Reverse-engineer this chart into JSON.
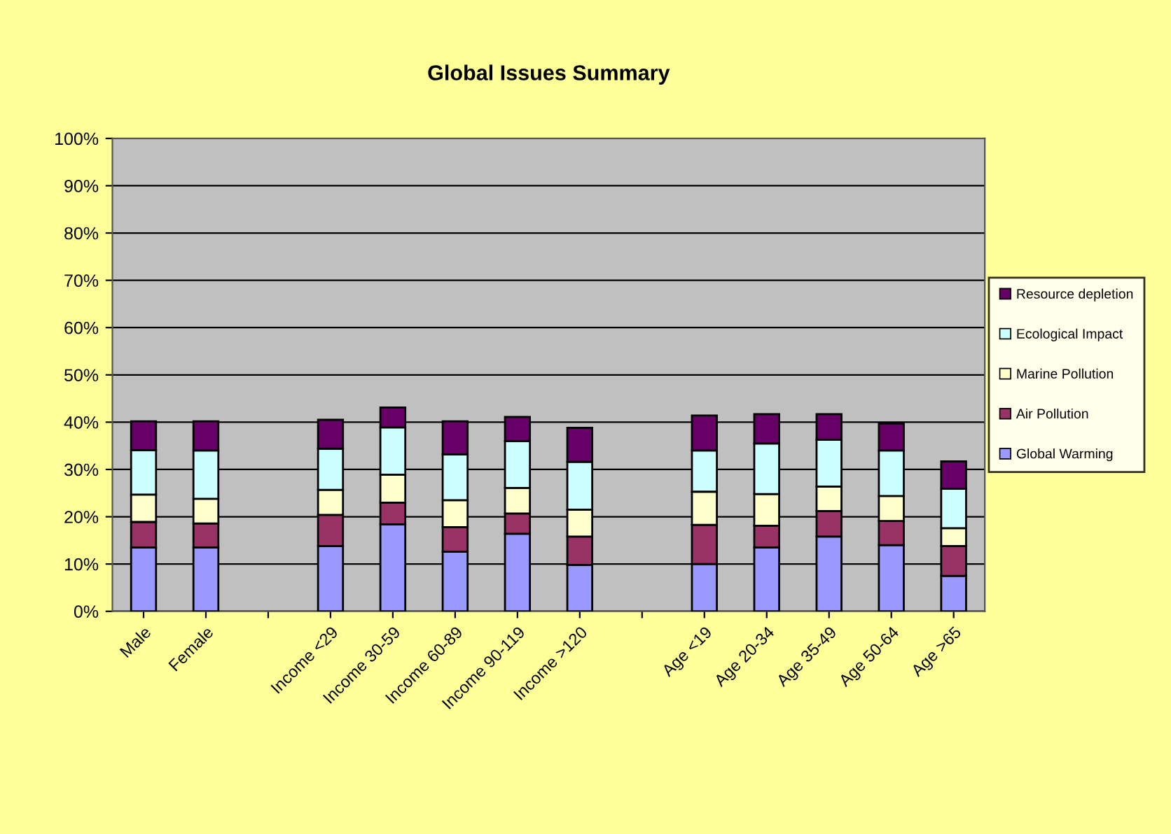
{
  "chart_data": {
    "type": "bar",
    "title": "Global Issues Summary",
    "stacked": true,
    "categories": [
      "Male",
      "Female",
      null,
      "Income <29",
      "Income 30-59",
      "Income 60-89",
      "Income 90-119",
      "Income >120",
      null,
      "Age <19",
      "Age 20-34",
      "Age 35-49",
      "Age 50-64",
      "Age >65"
    ],
    "series": [
      {
        "name": "Global Warming",
        "color": "#9999ff",
        "values": [
          13.5,
          13.5,
          null,
          13.8,
          18.4,
          12.6,
          16.4,
          9.8,
          null,
          10.0,
          13.5,
          15.8,
          14.0,
          7.5
        ]
      },
      {
        "name": "Air Pollution",
        "color": "#993366",
        "values": [
          5.4,
          5.1,
          null,
          6.6,
          4.6,
          5.2,
          4.3,
          6.0,
          null,
          8.3,
          4.6,
          5.4,
          5.1,
          6.3
        ]
      },
      {
        "name": "Marine Pollution",
        "color": "#ffffcc",
        "values": [
          5.8,
          5.2,
          null,
          5.3,
          5.9,
          5.7,
          5.4,
          5.7,
          null,
          7.0,
          6.7,
          5.2,
          5.3,
          3.8
        ]
      },
      {
        "name": "Ecological Impact",
        "color": "#ccffff",
        "values": [
          9.4,
          10.2,
          null,
          8.7,
          10.0,
          9.7,
          9.9,
          10.1,
          null,
          8.7,
          10.7,
          9.9,
          9.6,
          8.3
        ]
      },
      {
        "name": "Resource depletion",
        "color": "#660066",
        "values": [
          6.1,
          6.2,
          null,
          6.1,
          4.2,
          7.0,
          5.1,
          7.2,
          null,
          7.4,
          6.2,
          5.4,
          5.7,
          5.8
        ]
      }
    ],
    "ylim": [
      0,
      100
    ],
    "yticks": [
      {
        "value": 0,
        "label": "0%"
      },
      {
        "value": 10,
        "label": "10%"
      },
      {
        "value": 20,
        "label": "20%"
      },
      {
        "value": 30,
        "label": "30%"
      },
      {
        "value": 40,
        "label": "40%"
      },
      {
        "value": 50,
        "label": "50%"
      },
      {
        "value": 60,
        "label": "60%"
      },
      {
        "value": 70,
        "label": "70%"
      },
      {
        "value": 80,
        "label": "80%"
      },
      {
        "value": 90,
        "label": "90%"
      },
      {
        "value": 100,
        "label": "100%"
      }
    ],
    "grid": "y",
    "legend": "right"
  }
}
